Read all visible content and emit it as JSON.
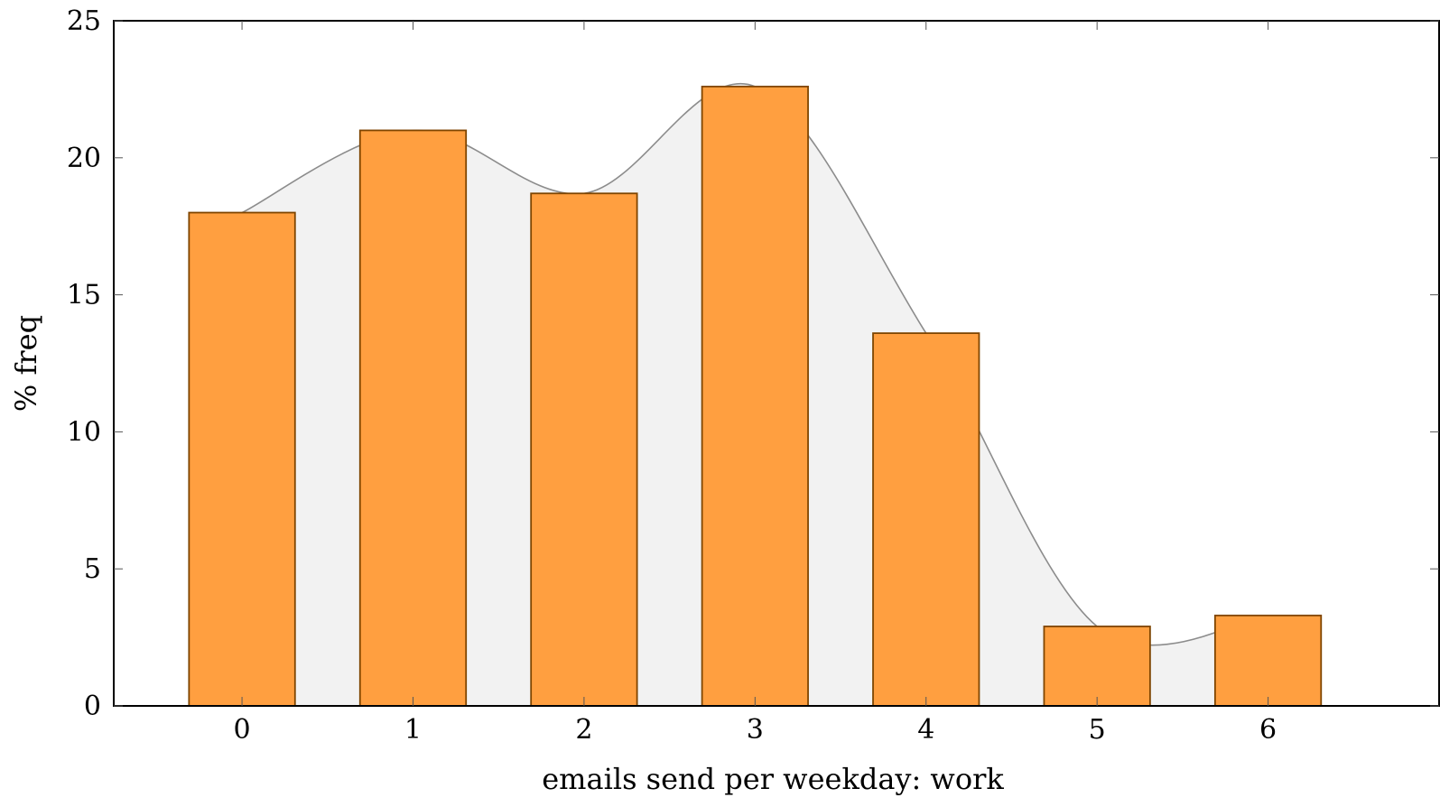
{
  "chart_data": {
    "type": "bar",
    "xlabel": "emails send per weekday: work",
    "ylabel": "% freq",
    "categories": [
      "0",
      "1",
      "2",
      "3",
      "4",
      "5",
      "6"
    ],
    "values": [
      18.0,
      21.0,
      18.7,
      22.6,
      13.6,
      2.9,
      3.3
    ],
    "xlim": [
      -0.75,
      7.0
    ],
    "ylim": [
      0,
      25
    ],
    "yticks": [
      0,
      5,
      10,
      15,
      20,
      25
    ],
    "grid": false,
    "legend": "none",
    "overlay": {
      "type": "area",
      "smooth": true,
      "fill": "#f2f2f2",
      "stroke": "#8c8c8c"
    },
    "colors": {
      "bar_fill": "#ff9f40",
      "bar_stroke": "#7f4500"
    }
  }
}
